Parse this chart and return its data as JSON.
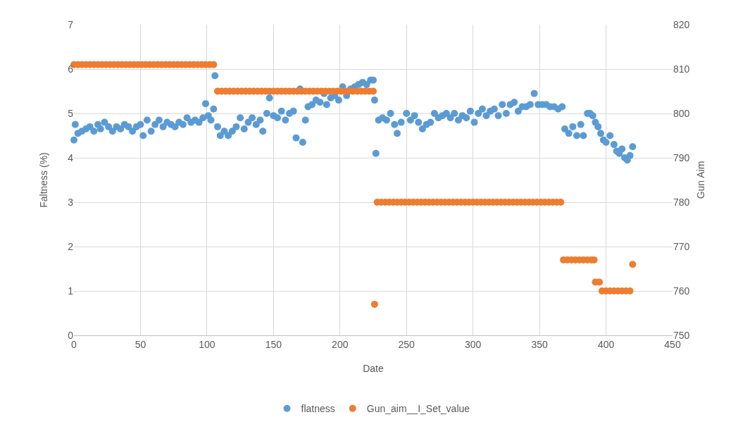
{
  "chart_data": {
    "type": "scatter",
    "xlabel": "Date",
    "ylabel": "Faltness (%)",
    "y2label": "Gun Aim",
    "xlim": [
      0,
      450
    ],
    "xticks": [
      0,
      50,
      100,
      150,
      200,
      250,
      300,
      350,
      400,
      450
    ],
    "ylim": [
      0,
      7
    ],
    "yticks": [
      0,
      1,
      2,
      3,
      4,
      5,
      6,
      7
    ],
    "y2lim": [
      750,
      820
    ],
    "y2ticks": [
      750,
      760,
      770,
      780,
      790,
      800,
      810,
      820
    ],
    "grid": true,
    "legend": "bottom",
    "marker": "circle",
    "series": [
      {
        "name": "flatness",
        "color": "#5b9bd5",
        "x": [
          0,
          1,
          3,
          6,
          9,
          12,
          15,
          18,
          20,
          23,
          26,
          29,
          32,
          35,
          38,
          41,
          44,
          47,
          50,
          52,
          55,
          58,
          61,
          64,
          67,
          70,
          73,
          76,
          79,
          82,
          85,
          88,
          91,
          94,
          97,
          99,
          101,
          103,
          105,
          106,
          108,
          110,
          113,
          116,
          119,
          122,
          125,
          128,
          131,
          134,
          137,
          140,
          142,
          145,
          147,
          150,
          153,
          156,
          159,
          162,
          165,
          167,
          170,
          172,
          174,
          176,
          179,
          182,
          185,
          188,
          190,
          193,
          196,
          199,
          202,
          205,
          208,
          211,
          214,
          217,
          220,
          223,
          225,
          226,
          227,
          229,
          232,
          235,
          238,
          241,
          243,
          246,
          250,
          253,
          256,
          259,
          262,
          265,
          268,
          271,
          274,
          277,
          280,
          283,
          286,
          289,
          292,
          295,
          298,
          301,
          304,
          307,
          310,
          313,
          316,
          319,
          322,
          325,
          328,
          331,
          334,
          337,
          340,
          343,
          346,
          349,
          352,
          355,
          358,
          361,
          364,
          367,
          369,
          372,
          375,
          378,
          381,
          383,
          386,
          388,
          390,
          392,
          394,
          396,
          398,
          400,
          403,
          406,
          408,
          410,
          412,
          414,
          416,
          418,
          420
        ],
        "values": [
          4.4,
          4.75,
          4.55,
          4.6,
          4.65,
          4.7,
          4.6,
          4.75,
          4.65,
          4.8,
          4.7,
          4.6,
          4.7,
          4.65,
          4.75,
          4.7,
          4.6,
          4.7,
          4.75,
          4.5,
          4.85,
          4.6,
          4.75,
          4.85,
          4.7,
          4.8,
          4.75,
          4.7,
          4.8,
          4.75,
          4.9,
          4.8,
          4.85,
          4.8,
          4.9,
          5.22,
          4.95,
          4.85,
          5.1,
          5.85,
          4.7,
          4.5,
          4.6,
          4.5,
          4.6,
          4.7,
          4.9,
          4.65,
          4.8,
          4.9,
          4.75,
          4.85,
          4.6,
          5.0,
          5.35,
          4.95,
          4.9,
          5.05,
          4.85,
          5.0,
          5.05,
          4.45,
          5.55,
          4.35,
          4.85,
          5.15,
          5.2,
          5.3,
          5.25,
          5.45,
          5.2,
          5.35,
          5.4,
          5.3,
          5.6,
          5.4,
          5.55,
          5.6,
          5.65,
          5.7,
          5.65,
          5.75,
          5.75,
          5.3,
          4.1,
          4.85,
          4.9,
          4.85,
          5.0,
          4.75,
          4.55,
          4.8,
          5.0,
          4.85,
          4.95,
          4.8,
          4.65,
          4.75,
          4.8,
          5.0,
          4.9,
          4.95,
          5.0,
          4.9,
          5.0,
          4.85,
          4.95,
          4.9,
          5.05,
          4.8,
          5.0,
          5.1,
          4.95,
          5.05,
          5.1,
          4.95,
          5.2,
          5.0,
          5.2,
          5.25,
          5.05,
          5.15,
          5.15,
          5.2,
          5.45,
          5.2,
          5.2,
          5.2,
          5.15,
          5.15,
          5.1,
          5.15,
          4.65,
          4.55,
          4.7,
          4.5,
          4.75,
          4.5,
          5.0,
          5.0,
          4.95,
          4.8,
          4.7,
          4.55,
          4.4,
          4.35,
          4.5,
          4.3,
          4.15,
          4.1,
          4.2,
          4.0,
          3.95,
          4.05,
          4.25
        ]
      },
      {
        "name": "Gun_aim__I_Set_value",
        "color": "#ed7d31",
        "axis": "y2",
        "x": [
          0,
          3,
          6,
          9,
          12,
          15,
          18,
          21,
          24,
          27,
          30,
          33,
          36,
          39,
          42,
          45,
          48,
          51,
          54,
          57,
          60,
          63,
          66,
          69,
          72,
          75,
          78,
          81,
          84,
          87,
          90,
          93,
          96,
          99,
          102,
          105,
          108,
          111,
          114,
          117,
          120,
          123,
          126,
          129,
          132,
          135,
          138,
          141,
          144,
          147,
          150,
          153,
          156,
          159,
          162,
          165,
          168,
          171,
          174,
          177,
          180,
          183,
          186,
          189,
          192,
          195,
          198,
          201,
          204,
          207,
          210,
          213,
          216,
          219,
          222,
          225,
          226,
          228,
          231,
          234,
          237,
          240,
          243,
          246,
          249,
          252,
          255,
          258,
          261,
          264,
          267,
          270,
          273,
          276,
          279,
          282,
          285,
          288,
          291,
          294,
          297,
          300,
          303,
          306,
          309,
          312,
          315,
          318,
          321,
          324,
          327,
          330,
          333,
          336,
          339,
          342,
          345,
          348,
          351,
          354,
          357,
          360,
          363,
          366,
          368,
          371,
          374,
          377,
          380,
          383,
          386,
          389,
          391,
          392,
          395,
          397,
          400,
          403,
          406,
          409,
          412,
          415,
          418,
          420
        ],
        "values": [
          811,
          811,
          811,
          811,
          811,
          811,
          811,
          811,
          811,
          811,
          811,
          811,
          811,
          811,
          811,
          811,
          811,
          811,
          811,
          811,
          811,
          811,
          811,
          811,
          811,
          811,
          811,
          811,
          811,
          811,
          811,
          811,
          811,
          811,
          811,
          811,
          805,
          805,
          805,
          805,
          805,
          805,
          805,
          805,
          805,
          805,
          805,
          805,
          805,
          805,
          805,
          805,
          805,
          805,
          805,
          805,
          805,
          805,
          805,
          805,
          805,
          805,
          805,
          805,
          805,
          805,
          805,
          805,
          805,
          805,
          805,
          805,
          805,
          805,
          805,
          805,
          757,
          780,
          780,
          780,
          780,
          780,
          780,
          780,
          780,
          780,
          780,
          780,
          780,
          780,
          780,
          780,
          780,
          780,
          780,
          780,
          780,
          780,
          780,
          780,
          780,
          780,
          780,
          780,
          780,
          780,
          780,
          780,
          780,
          780,
          780,
          780,
          780,
          780,
          780,
          780,
          780,
          780,
          780,
          780,
          780,
          780,
          780,
          780,
          767,
          767,
          767,
          767,
          767,
          767,
          767,
          767,
          767,
          762,
          762,
          760,
          760,
          760,
          760,
          760,
          760,
          760,
          760,
          766
        ]
      }
    ]
  }
}
